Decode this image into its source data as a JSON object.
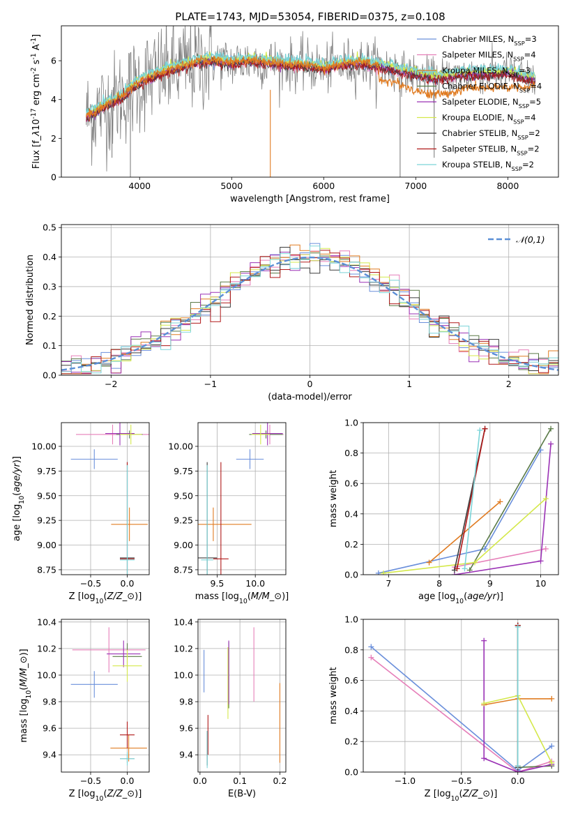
{
  "figure": {
    "title": "PLATE=1743, MJD=53054, FIBERID=0375, z=0.108"
  },
  "colors": {
    "data": "#808080",
    "Chabrier MILES": "#6a8fdb",
    "Salpeter MILES": "#e67fb9",
    "Kroupa MILES": "#e07b21",
    "Chabrier ELODIE": "#5a7a47",
    "Salpeter ELODIE": "#9a31b5",
    "Kroupa ELODIE": "#d4e84a",
    "Chabrier STELIB": "#3c3c3c",
    "Salpeter STELIB": "#b01818",
    "Kroupa STELIB": "#7bd4d8",
    "normal": "#5b8fd6"
  },
  "chart_data": [
    {
      "id": "spectrum",
      "type": "line",
      "title": "PLATE=1743, MJD=53054, FIBERID=0375, z=0.108",
      "xlabel": "wavelength [Angstrom, rest frame]",
      "ylabel": "Flux [f$_\\lambda$10$^{-17}$ erg cm$^{-2}$ s$^{-1}$ A$^{-1}$]",
      "xlim": [
        3150,
        8550
      ],
      "ylim": [
        0,
        7.8
      ],
      "xticks": [
        4000,
        5000,
        6000,
        7000,
        8000
      ],
      "yticks": [
        0,
        2,
        4,
        6
      ],
      "grid": false,
      "legend_position": "top-right",
      "legend": [
        "Chabrier MILES, N$_{SSP}$=3",
        "Salpeter MILES, N$_{SSP}$=4",
        "Kroupa MILES, N$_{SSP}$=3",
        "Chabrier ELODIE, N$_{SSP}$=4",
        "Salpeter ELODIE, N$_{SSP}$=5",
        "Kroupa ELODIE, N$_{SSP}$=4",
        "Chabrier STELIB, N$_{SSP}$=2",
        "Salpeter STELIB, N$_{SSP}$=2",
        "Kroupa STELIB, N$_{SSP}$=2"
      ],
      "continuum_x": [
        3420,
        3600,
        3800,
        4000,
        4200,
        4400,
        4600,
        4800,
        5000,
        5200,
        5400,
        5600,
        5800,
        6000,
        6200,
        6400,
        6600,
        6800,
        7000,
        7200,
        7400,
        7600,
        7800,
        8000,
        8200,
        8300
      ],
      "continuum_y": [
        3.1,
        3.6,
        4.1,
        4.9,
        5.3,
        5.6,
        5.9,
        6.0,
        5.9,
        6.0,
        5.9,
        5.8,
        5.75,
        5.6,
        5.8,
        5.9,
        5.7,
        5.5,
        5.3,
        5.1,
        5.2,
        5.35,
        5.3,
        5.4,
        5.1,
        5.0
      ],
      "kroupa_miles_x": [
        6600,
        6800,
        7000,
        7200,
        7400,
        7600,
        7800,
        8000
      ],
      "kroupa_miles_y": [
        5.0,
        4.8,
        4.4,
        4.2,
        4.3,
        4.6,
        4.5,
        4.6
      ]
    },
    {
      "id": "residuals",
      "type": "histogram",
      "xlabel": "(data-model)/error",
      "ylabel": "Normed distribution",
      "xlim": [
        -2.5,
        2.5
      ],
      "ylim": [
        0,
        0.51
      ],
      "xticks": [
        -2,
        -1,
        0,
        1,
        2
      ],
      "yticks": [
        0.0,
        0.1,
        0.2,
        0.3,
        0.4,
        0.5
      ],
      "grid": true,
      "legend_position": "top-right",
      "legend": [
        "$\\mathcal{N}(0,1)$"
      ]
    },
    {
      "id": "age_vs_Z",
      "type": "errorbar",
      "xlabel": "Z [log$_{10}$($Z/Z_\\odot$)]",
      "ylabel": "age  [log$_{10}$($age/yr$)]",
      "xlim": [
        -0.9,
        0.3
      ],
      "ylim": [
        8.7,
        10.24
      ],
      "xticks": [
        -0.5,
        0.0
      ],
      "yticks": [
        8.75,
        9.0,
        9.25,
        9.5,
        9.75,
        10.0
      ],
      "grid": true,
      "points": [
        {
          "m": "Chabrier MILES",
          "x": -0.45,
          "y": 9.87,
          "xe": 0.32,
          "ye": 0.1
        },
        {
          "m": "Salpeter MILES",
          "x": -0.2,
          "y": 10.12,
          "xe": 0.5,
          "ye": 0.1
        },
        {
          "m": "Kroupa MILES",
          "x": 0.03,
          "y": 9.21,
          "xe": 0.25,
          "ye": 0.17
        },
        {
          "m": "Chabrier ELODIE",
          "x": 0.03,
          "y": 10.12,
          "xe": 0.18,
          "ye": 0.04
        },
        {
          "m": "Salpeter ELODIE",
          "x": -0.1,
          "y": 10.13,
          "xe": 0.2,
          "ye": 0.12
        },
        {
          "m": "Kroupa ELODIE",
          "x": 0.05,
          "y": 10.12,
          "xe": 0.15,
          "ye": 0.1
        },
        {
          "m": "Chabrier STELIB",
          "x": 0.0,
          "y": 8.87,
          "xe": 0.1,
          "ye": 0.97
        },
        {
          "m": "Salpeter STELIB",
          "x": 0.0,
          "y": 8.86,
          "xe": 0.1,
          "ye": 0.98
        },
        {
          "m": "Kroupa STELIB",
          "x": 0.0,
          "y": 8.85,
          "xe": 0.1,
          "ye": 0.96
        }
      ]
    },
    {
      "id": "age_vs_mass",
      "type": "errorbar",
      "xlabel": "mass [log$_{10}$($M/M_\\odot$)]",
      "ylabel": "",
      "xlim": [
        9.25,
        10.4
      ],
      "ylim": [
        8.7,
        10.24
      ],
      "xticks": [
        9.5,
        10.0
      ],
      "yticks": [
        8.75,
        9.0,
        9.25,
        9.5,
        9.75,
        10.0
      ],
      "grid": true,
      "points": [
        {
          "m": "Chabrier MILES",
          "x": 9.93,
          "y": 9.87,
          "xe": 0.18,
          "ye": 0.1
        },
        {
          "m": "Salpeter MILES",
          "x": 10.19,
          "y": 10.12,
          "xe": 0.18,
          "ye": 0.1
        },
        {
          "m": "Kroupa MILES",
          "x": 9.45,
          "y": 9.21,
          "xe": 0.5,
          "ye": 0.17
        },
        {
          "m": "Chabrier ELODIE",
          "x": 10.14,
          "y": 10.12,
          "xe": 0.22,
          "ye": 0.04
        },
        {
          "m": "Salpeter ELODIE",
          "x": 10.16,
          "y": 10.13,
          "xe": 0.2,
          "ye": 0.12
        },
        {
          "m": "Kroupa ELODIE",
          "x": 10.07,
          "y": 10.12,
          "xe": 0.12,
          "ye": 0.1
        },
        {
          "m": "Chabrier STELIB",
          "x": 9.37,
          "y": 8.87,
          "xe": 0.13,
          "ye": 0.97
        },
        {
          "m": "Salpeter STELIB",
          "x": 9.55,
          "y": 8.86,
          "xe": 0.1,
          "ye": 0.98
        },
        {
          "m": "Kroupa STELIB",
          "x": 9.37,
          "y": 8.85,
          "xe": 0.08,
          "ye": 0.96
        }
      ]
    },
    {
      "id": "weight_vs_age",
      "type": "line",
      "xlabel": "age  [log$_{10}$($age/yr$)]",
      "ylabel": "mass weight",
      "xlim": [
        6.5,
        10.35
      ],
      "ylim": [
        0,
        1
      ],
      "xticks": [
        7,
        8,
        9,
        10
      ],
      "yticks": [
        0.0,
        0.2,
        0.4,
        0.6,
        0.8,
        1.0
      ],
      "grid": true,
      "series": [
        {
          "m": "Chabrier MILES",
          "x": [
            6.8,
            8.9,
            10.0
          ],
          "y": [
            0.01,
            0.17,
            0.82
          ]
        },
        {
          "m": "Salpeter MILES",
          "x": [
            8.3,
            10.1
          ],
          "y": [
            0.05,
            0.17
          ]
        },
        {
          "m": "Kroupa MILES",
          "x": [
            7.8,
            9.2
          ],
          "y": [
            0.08,
            0.48
          ]
        },
        {
          "m": "Chabrier ELODIE",
          "x": [
            8.6,
            10.2
          ],
          "y": [
            0.03,
            0.96
          ]
        },
        {
          "m": "Salpeter ELODIE",
          "x": [
            8.3,
            10.0,
            10.2
          ],
          "y": [
            0.0,
            0.09,
            0.86
          ]
        },
        {
          "m": "Kroupa ELODIE",
          "x": [
            6.9,
            8.7,
            10.1
          ],
          "y": [
            0.01,
            0.08,
            0.5
          ]
        },
        {
          "m": "Chabrier STELIB",
          "x": [
            8.3,
            8.9
          ],
          "y": [
            0.03,
            0.96
          ]
        },
        {
          "m": "Salpeter STELIB",
          "x": [
            8.35,
            8.9
          ],
          "y": [
            0.04,
            0.96
          ]
        },
        {
          "m": "Kroupa STELIB",
          "x": [
            8.5,
            8.8
          ],
          "y": [
            0.04,
            0.95
          ]
        }
      ]
    },
    {
      "id": "mass_vs_Z",
      "type": "errorbar",
      "xlabel": "Z [log$_{10}$($Z/Z_\\odot$)]",
      "ylabel": "mass [log$_{10}$($M/M_\\odot$)]",
      "xlim": [
        -0.9,
        0.3
      ],
      "ylim": [
        9.27,
        10.42
      ],
      "xticks": [
        -0.5,
        0.0
      ],
      "yticks": [
        9.4,
        9.6,
        9.8,
        10.0,
        10.2,
        10.4
      ],
      "grid": true,
      "points": [
        {
          "m": "Chabrier MILES",
          "x": -0.45,
          "y": 9.93,
          "xe": 0.32,
          "ye": 0.1
        },
        {
          "m": "Salpeter MILES",
          "x": -0.25,
          "y": 10.19,
          "xe": 0.5,
          "ye": 0.17
        },
        {
          "m": "Kroupa MILES",
          "x": 0.02,
          "y": 9.45,
          "xe": 0.25,
          "ye": 0.1
        },
        {
          "m": "Chabrier ELODIE",
          "x": 0.0,
          "y": 10.14,
          "xe": 0.2,
          "ye": 0.1
        },
        {
          "m": "Salpeter ELODIE",
          "x": -0.05,
          "y": 10.16,
          "xe": 0.23,
          "ye": 0.1
        },
        {
          "m": "Kroupa ELODIE",
          "x": 0.0,
          "y": 10.07,
          "xe": 0.2,
          "ye": 0.12
        },
        {
          "m": "Chabrier STELIB",
          "x": 0.0,
          "y": 9.37,
          "xe": 0.1,
          "ye": 0.03
        },
        {
          "m": "Salpeter STELIB",
          "x": 0.0,
          "y": 9.55,
          "xe": 0.1,
          "ye": 0.1
        },
        {
          "m": "Kroupa STELIB",
          "x": 0.0,
          "y": 9.37,
          "xe": 0.1,
          "ye": 0.05
        }
      ]
    },
    {
      "id": "mass_vs_ebv",
      "type": "errorbar",
      "xlabel": "E(B-V)",
      "ylabel": "",
      "xlim": [
        -0.005,
        0.215
      ],
      "ylim": [
        9.27,
        10.42
      ],
      "xticks": [
        0.0,
        0.1,
        0.2
      ],
      "yticks": [
        9.4,
        9.6,
        9.8,
        10.0,
        10.2,
        10.4
      ],
      "grid": true,
      "points": [
        {
          "m": "Chabrier MILES",
          "x": 0.01,
          "y": 10.03,
          "xe": 0,
          "ye": 0.16
        },
        {
          "m": "Salpeter MILES",
          "x": 0.135,
          "y": 10.08,
          "xe": 0,
          "ye": 0.28
        },
        {
          "m": "Kroupa MILES",
          "x": 0.2,
          "y": 9.64,
          "xe": 0,
          "ye": 0.3
        },
        {
          "m": "Chabrier ELODIE",
          "x": 0.072,
          "y": 10.0,
          "xe": 0,
          "ye": 0.25
        },
        {
          "m": "Salpeter ELODIE",
          "x": 0.072,
          "y": 10.02,
          "xe": 0,
          "ye": 0.24
        },
        {
          "m": "Kroupa ELODIE",
          "x": 0.07,
          "y": 9.94,
          "xe": 0,
          "ye": 0.27
        },
        {
          "m": "Chabrier STELIB",
          "x": 0.018,
          "y": 9.45,
          "xe": 0,
          "ye": 0.13
        },
        {
          "m": "Salpeter STELIB",
          "x": 0.02,
          "y": 9.55,
          "xe": 0,
          "ye": 0.15
        },
        {
          "m": "Kroupa STELIB",
          "x": 0.018,
          "y": 9.44,
          "xe": 0,
          "ye": 0.14
        }
      ]
    },
    {
      "id": "weight_vs_Z",
      "type": "line",
      "xlabel": "Z [log$_{10}$($Z/Z_\\odot$)]",
      "ylabel": "mass weight",
      "xlim": [
        -1.37,
        0.36
      ],
      "ylim": [
        0,
        1
      ],
      "xticks": [
        -1.0,
        -0.5,
        0.0
      ],
      "yticks": [
        0.0,
        0.2,
        0.4,
        0.6,
        0.8,
        1.0
      ],
      "grid": true,
      "series": [
        {
          "m": "Chabrier MILES",
          "x": [
            -1.3,
            0.0,
            0.3
          ],
          "y": [
            0.82,
            0.01,
            0.17
          ]
        },
        {
          "m": "Salpeter MILES",
          "x": [
            -1.3,
            0.0,
            0.3
          ],
          "y": [
            0.75,
            0.0,
            0.07
          ]
        },
        {
          "m": "Kroupa MILES",
          "x": [
            -0.3,
            0.0,
            0.3
          ],
          "y": [
            0.44,
            0.48,
            0.48
          ]
        },
        {
          "m": "Chabrier ELODIE",
          "x": [
            0.0,
            0.0,
            0.3
          ],
          "y": [
            0.96,
            0.03,
            0.04
          ]
        },
        {
          "m": "Salpeter ELODIE",
          "x": [
            -0.3,
            -0.3,
            0.0,
            0.3
          ],
          "y": [
            0.86,
            0.09,
            0.0,
            0.05
          ]
        },
        {
          "m": "Kroupa ELODIE",
          "x": [
            -0.3,
            0.0,
            0.3
          ],
          "y": [
            0.45,
            0.5,
            0.06
          ]
        },
        {
          "m": "Chabrier STELIB",
          "x": [
            0.0,
            0.0
          ],
          "y": [
            0.96,
            0.03
          ]
        },
        {
          "m": "Salpeter STELIB",
          "x": [
            0.0,
            0.0
          ],
          "y": [
            0.96,
            0.04
          ]
        },
        {
          "m": "Kroupa STELIB",
          "x": [
            0.0,
            0.0
          ],
          "y": [
            0.95,
            0.04
          ]
        }
      ]
    }
  ]
}
